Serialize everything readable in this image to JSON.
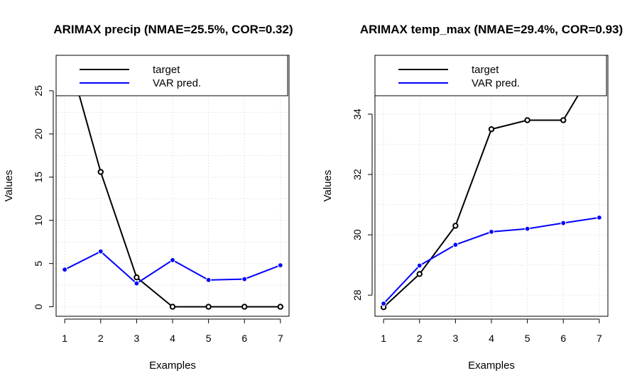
{
  "chart_data": [
    {
      "type": "line",
      "title": "ARIMAX precip (NMAE=25.5%, COR=0.32)",
      "xlabel": "Examples",
      "ylabel": "Values",
      "x": [
        1,
        2,
        3,
        4,
        5,
        6,
        7
      ],
      "xticks": [
        "1",
        "2",
        "3",
        "4",
        "5",
        "6",
        "7"
      ],
      "yticks": [
        "0",
        "5",
        "10",
        "15",
        "20",
        "25"
      ],
      "ylim": [
        -1.1,
        29.1
      ],
      "grid": true,
      "legend_position": "top",
      "series": [
        {
          "name": "target",
          "color": "#000000",
          "values": [
            30.5,
            15.6,
            3.4,
            0.0,
            0.0,
            0.0,
            0.0
          ]
        },
        {
          "name": "VAR pred.",
          "color": "#0000ff",
          "values": [
            4.3,
            6.4,
            2.7,
            5.4,
            3.1,
            3.2,
            4.8
          ]
        }
      ]
    },
    {
      "type": "line",
      "title": "ARIMAX temp_max (NMAE=29.4%, COR=0.93)",
      "xlabel": "Examples",
      "ylabel": "Values",
      "x": [
        1,
        2,
        3,
        4,
        5,
        6,
        7
      ],
      "xticks": [
        "1",
        "2",
        "3",
        "4",
        "5",
        "6",
        "7"
      ],
      "yticks": [
        "28",
        "30",
        "32",
        "34"
      ],
      "ylim": [
        27.3,
        35.95
      ],
      "grid": true,
      "legend_position": "top",
      "series": [
        {
          "name": "target",
          "color": "#000000",
          "values": [
            27.6,
            28.7,
            30.3,
            33.5,
            33.8,
            33.8,
            35.8
          ]
        },
        {
          "name": "VAR pred.",
          "color": "#0000ff",
          "values": [
            27.72,
            28.98,
            29.67,
            30.1,
            30.2,
            30.39,
            30.57
          ]
        }
      ]
    }
  ]
}
